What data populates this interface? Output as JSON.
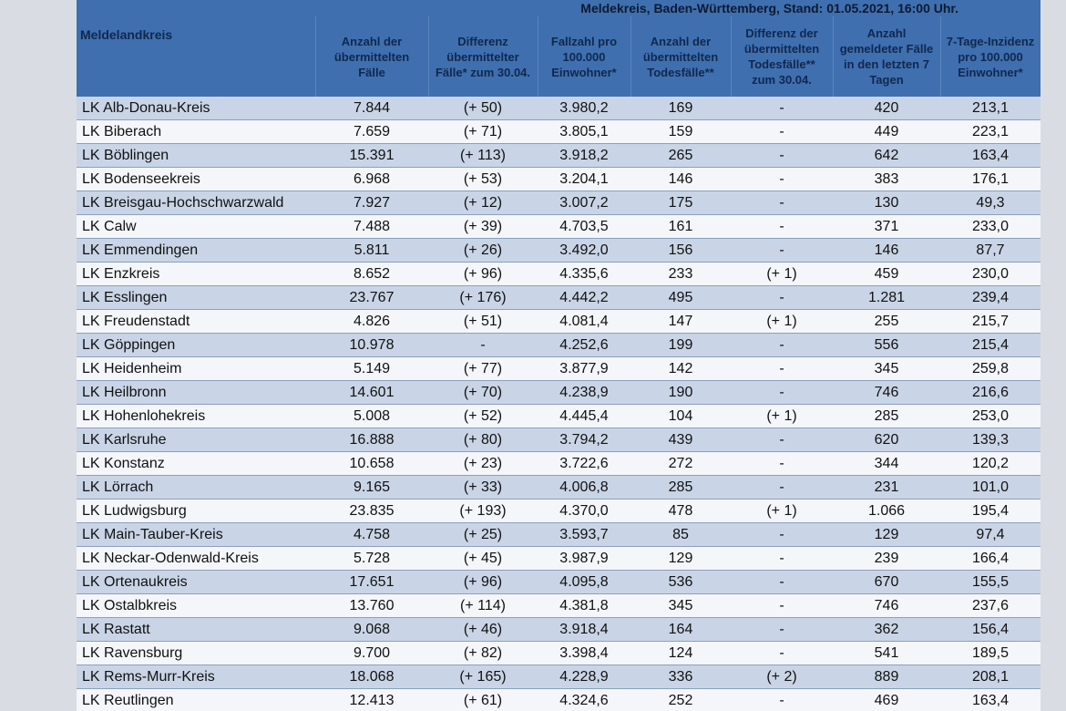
{
  "title": "Meldekreis, Baden-Württemberg, Stand: 01.05.2021, 16:00 Uhr.",
  "table": {
    "headers": [
      "Meldelandkreis",
      "Anzahl der übermittelten Fälle",
      "Differenz übermittelter Fälle* zum 30.04.",
      "Fallzahl pro 100.000 Einwohner*",
      "Anzahl der übermittelten Todesfälle**",
      "Differenz der übermittelten Todesfälle** zum 30.04.",
      "Anzahl gemeldeter Fälle in den letzten 7 Tagen",
      "7-Tage-Inzidenz pro 100.000 Einwohner*"
    ],
    "rows": [
      [
        "LK Alb-Donau-Kreis",
        "7.844",
        "(+ 50)",
        "3.980,2",
        "169",
        "-",
        "420",
        "213,1"
      ],
      [
        "LK Biberach",
        "7.659",
        "(+ 71)",
        "3.805,1",
        "159",
        "-",
        "449",
        "223,1"
      ],
      [
        "LK Böblingen",
        "15.391",
        "(+ 113)",
        "3.918,2",
        "265",
        "-",
        "642",
        "163,4"
      ],
      [
        "LK Bodenseekreis",
        "6.968",
        "(+ 53)",
        "3.204,1",
        "146",
        "-",
        "383",
        "176,1"
      ],
      [
        "LK Breisgau-Hochschwarzwald",
        "7.927",
        "(+ 12)",
        "3.007,2",
        "175",
        "-",
        "130",
        "49,3"
      ],
      [
        "LK Calw",
        "7.488",
        "(+ 39)",
        "4.703,5",
        "161",
        "-",
        "371",
        "233,0"
      ],
      [
        "LK Emmendingen",
        "5.811",
        "(+ 26)",
        "3.492,0",
        "156",
        "-",
        "146",
        "87,7"
      ],
      [
        "LK Enzkreis",
        "8.652",
        "(+ 96)",
        "4.335,6",
        "233",
        "(+ 1)",
        "459",
        "230,0"
      ],
      [
        "LK Esslingen",
        "23.767",
        "(+ 176)",
        "4.442,2",
        "495",
        "-",
        "1.281",
        "239,4"
      ],
      [
        "LK Freudenstadt",
        "4.826",
        "(+ 51)",
        "4.081,4",
        "147",
        "(+ 1)",
        "255",
        "215,7"
      ],
      [
        "LK Göppingen",
        "10.978",
        "-",
        "4.252,6",
        "199",
        "-",
        "556",
        "215,4"
      ],
      [
        "LK Heidenheim",
        "5.149",
        "(+ 77)",
        "3.877,9",
        "142",
        "-",
        "345",
        "259,8"
      ],
      [
        "LK Heilbronn",
        "14.601",
        "(+ 70)",
        "4.238,9",
        "190",
        "-",
        "746",
        "216,6"
      ],
      [
        "LK Hohenlohekreis",
        "5.008",
        "(+ 52)",
        "4.445,4",
        "104",
        "(+ 1)",
        "285",
        "253,0"
      ],
      [
        "LK Karlsruhe",
        "16.888",
        "(+ 80)",
        "3.794,2",
        "439",
        "-",
        "620",
        "139,3"
      ],
      [
        "LK Konstanz",
        "10.658",
        "(+ 23)",
        "3.722,6",
        "272",
        "-",
        "344",
        "120,2"
      ],
      [
        "LK Lörrach",
        "9.165",
        "(+ 33)",
        "4.006,8",
        "285",
        "-",
        "231",
        "101,0"
      ],
      [
        "LK Ludwigsburg",
        "23.835",
        "(+ 193)",
        "4.370,0",
        "478",
        "(+ 1)",
        "1.066",
        "195,4"
      ],
      [
        "LK Main-Tauber-Kreis",
        "4.758",
        "(+ 25)",
        "3.593,7",
        "85",
        "-",
        "129",
        "97,4"
      ],
      [
        "LK Neckar-Odenwald-Kreis",
        "5.728",
        "(+ 45)",
        "3.987,9",
        "129",
        "-",
        "239",
        "166,4"
      ],
      [
        "LK Ortenaukreis",
        "17.651",
        "(+ 96)",
        "4.095,8",
        "536",
        "-",
        "670",
        "155,5"
      ],
      [
        "LK Ostalbkreis",
        "13.760",
        "(+ 114)",
        "4.381,8",
        "345",
        "-",
        "746",
        "237,6"
      ],
      [
        "LK Rastatt",
        "9.068",
        "(+ 46)",
        "3.918,4",
        "164",
        "-",
        "362",
        "156,4"
      ],
      [
        "LK Ravensburg",
        "9.700",
        "(+ 82)",
        "3.398,4",
        "124",
        "-",
        "541",
        "189,5"
      ],
      [
        "LK Rems-Murr-Kreis",
        "18.068",
        "(+ 165)",
        "4.228,9",
        "336",
        "(+ 2)",
        "889",
        "208,1"
      ],
      [
        "LK Reutlingen",
        "12.413",
        "(+ 61)",
        "4.324,6",
        "252",
        "-",
        "469",
        "163,4"
      ]
    ]
  }
}
